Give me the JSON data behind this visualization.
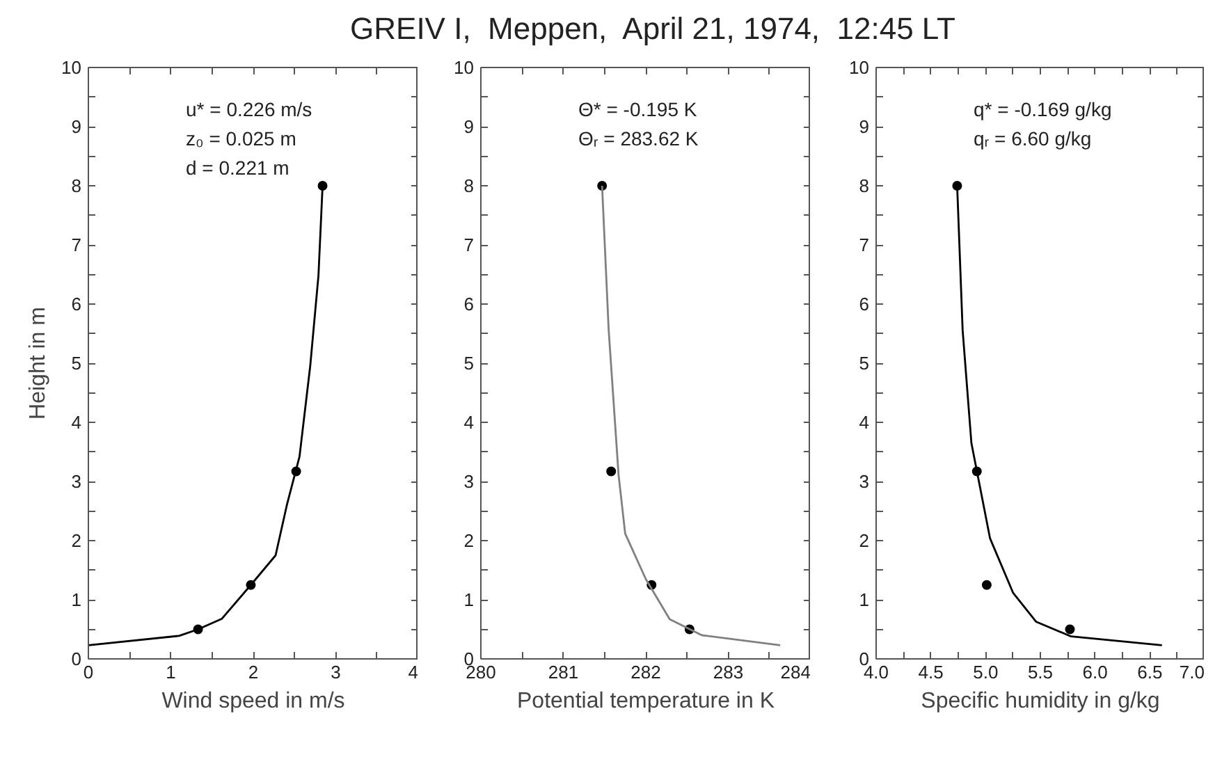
{
  "chart_data": [
    {
      "type": "scatter",
      "xlabel": "Wind speed in m/s",
      "ylabel": "Height in m",
      "xlim": [
        0,
        4
      ],
      "ylim": [
        0,
        10
      ],
      "xticks": [
        0,
        {
          "value": 0.5,
          "label": null
        },
        1,
        {
          "value": 1.5,
          "label": null
        },
        2,
        {
          "value": 2.5,
          "label": null
        },
        3,
        {
          "value": 3.5,
          "label": null
        },
        4
      ],
      "yticks": [
        0,
        {
          "value": 0.5,
          "label": null
        },
        1,
        {
          "value": 1.5,
          "label": null
        },
        2,
        {
          "value": 2.5,
          "label": null
        },
        3,
        {
          "value": 3.5,
          "label": null
        },
        4,
        {
          "value": 4.5,
          "label": null
        },
        5,
        {
          "value": 5.5,
          "label": null
        },
        6,
        {
          "value": 6.5,
          "label": null
        },
        7,
        {
          "value": 7.5,
          "label": null
        },
        8,
        {
          "value": 8.5,
          "label": null
        },
        9,
        {
          "value": 9.5,
          "label": null
        },
        10
      ],
      "annotations": [
        "u* = 0.226 m/s",
        "z₀ = 0.025 m",
        "d = 0.221 m"
      ],
      "series": [
        {
          "type": "scatter",
          "color": "#000000",
          "marker": "circle",
          "x": [
            1.33,
            1.97,
            2.52,
            2.84
          ],
          "values": [
            0.5,
            1.25,
            3.17,
            8.0
          ]
        },
        {
          "type": "line",
          "color": "#000000",
          "marker": "none",
          "x": [
            0,
            1.1,
            1.33,
            1.62,
            1.97,
            2.27,
            2.41,
            2.56,
            2.69,
            2.79,
            2.84
          ],
          "values": [
            0.23,
            0.39,
            0.5,
            0.68,
            1.25,
            1.75,
            2.62,
            3.42,
            4.95,
            6.48,
            8.0
          ]
        }
      ]
    },
    {
      "type": "scatter",
      "title": "GREIV I,  Meppen,  April 21, 1974,  12:45 LT",
      "xlabel": "Potential temperature in K",
      "xlim": [
        280,
        284
      ],
      "ylim": [
        0,
        10
      ],
      "xticks": [
        280,
        {
          "value": 280.5,
          "label": null
        },
        281,
        {
          "value": 281.5,
          "label": null
        },
        282,
        {
          "value": 282.5,
          "label": null
        },
        283,
        {
          "value": 283.5,
          "label": null
        },
        284
      ],
      "yticks": [
        0,
        {
          "value": 0.5,
          "label": null
        },
        1,
        {
          "value": 1.5,
          "label": null
        },
        2,
        {
          "value": 2.5,
          "label": null
        },
        3,
        {
          "value": 3.5,
          "label": null
        },
        4,
        {
          "value": 4.5,
          "label": null
        },
        5,
        {
          "value": 5.5,
          "label": null
        },
        6,
        {
          "value": 6.5,
          "label": null
        },
        7,
        {
          "value": 7.5,
          "label": null
        },
        8,
        {
          "value": 8.5,
          "label": null
        },
        9,
        {
          "value": 9.5,
          "label": null
        },
        10
      ],
      "annotations": [
        "Θ* = -0.195 K",
        "Θᵣ = 283.62 K"
      ],
      "series": [
        {
          "type": "scatter",
          "color": "#000000",
          "marker": "circle",
          "x": [
            282.53,
            282.07,
            281.58,
            281.47
          ],
          "values": [
            0.5,
            1.25,
            3.17,
            8.0
          ]
        },
        {
          "type": "line",
          "color": "#808080",
          "marker": "none",
          "x": [
            283.63,
            282.68,
            282.29,
            282.0,
            281.75,
            281.67,
            281.55,
            281.47
          ],
          "values": [
            0.23,
            0.4,
            0.67,
            1.35,
            2.12,
            3.11,
            5.56,
            8.0
          ]
        }
      ]
    },
    {
      "type": "scatter",
      "xlabel": "Specific humidity in g/kg",
      "xlim": [
        4.0,
        7.0
      ],
      "ylim": [
        0,
        10
      ],
      "xticks": [
        {
          "value": 4.0,
          "label": "4.0"
        },
        {
          "value": 4.25,
          "label": null
        },
        {
          "value": 4.5,
          "label": "4.5"
        },
        {
          "value": 4.75,
          "label": null
        },
        {
          "value": 5.0,
          "label": "5.0"
        },
        {
          "value": 5.25,
          "label": null
        },
        {
          "value": 5.5,
          "label": "5.5"
        },
        {
          "value": 5.75,
          "label": null
        },
        {
          "value": 6.0,
          "label": "6.0"
        },
        {
          "value": 6.25,
          "label": null
        },
        {
          "value": 6.5,
          "label": "6.5"
        },
        {
          "value": 6.75,
          "label": null
        },
        {
          "value": 7.0,
          "label": "7.0"
        }
      ],
      "yticks": [
        0,
        {
          "value": 0.5,
          "label": null
        },
        1,
        {
          "value": 1.5,
          "label": null
        },
        2,
        {
          "value": 2.5,
          "label": null
        },
        3,
        {
          "value": 3.5,
          "label": null
        },
        4,
        {
          "value": 4.5,
          "label": null
        },
        5,
        {
          "value": 5.5,
          "label": null
        },
        6,
        {
          "value": 6.5,
          "label": null
        },
        7,
        {
          "value": 7.5,
          "label": null
        },
        8,
        {
          "value": 8.5,
          "label": null
        },
        9,
        {
          "value": 9.5,
          "label": null
        },
        10
      ],
      "annotations": [
        "q* = -0.169 g/kg",
        "qᵣ = 6.60 g/kg"
      ],
      "series": [
        {
          "type": "scatter",
          "color": "#000000",
          "marker": "circle",
          "x": [
            5.77,
            5.01,
            4.92,
            4.74
          ],
          "values": [
            0.5,
            1.25,
            3.17,
            8.0
          ]
        },
        {
          "type": "line",
          "color": "#000000",
          "marker": "none",
          "x": [
            6.61,
            5.78,
            5.46,
            5.25,
            5.04,
            4.87,
            4.79,
            4.74
          ],
          "values": [
            0.23,
            0.38,
            0.63,
            1.12,
            2.04,
            3.65,
            5.56,
            8.0
          ]
        }
      ]
    }
  ]
}
